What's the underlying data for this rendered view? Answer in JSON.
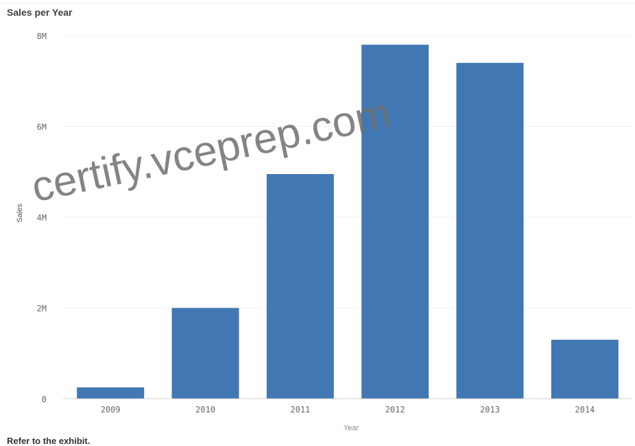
{
  "chart_data": {
    "type": "bar",
    "title": "Sales per Year",
    "xlabel": "Year",
    "ylabel": "Sales",
    "categories": [
      "2009",
      "2010",
      "2011",
      "2012",
      "2013",
      "2014"
    ],
    "values": [
      250000,
      2000000,
      4950000,
      7800000,
      7400000,
      1300000
    ],
    "ylim": [
      0,
      8000000
    ],
    "yticks": [
      0,
      2000000,
      4000000,
      6000000,
      8000000
    ],
    "ytick_labels": [
      "0",
      "2M",
      "4M",
      "6M",
      "8M"
    ],
    "grid": true,
    "bar_color": "#4177b3"
  },
  "watermark": "certify.vceprep.com",
  "footer": {
    "text": "Refer to the exhibit."
  }
}
